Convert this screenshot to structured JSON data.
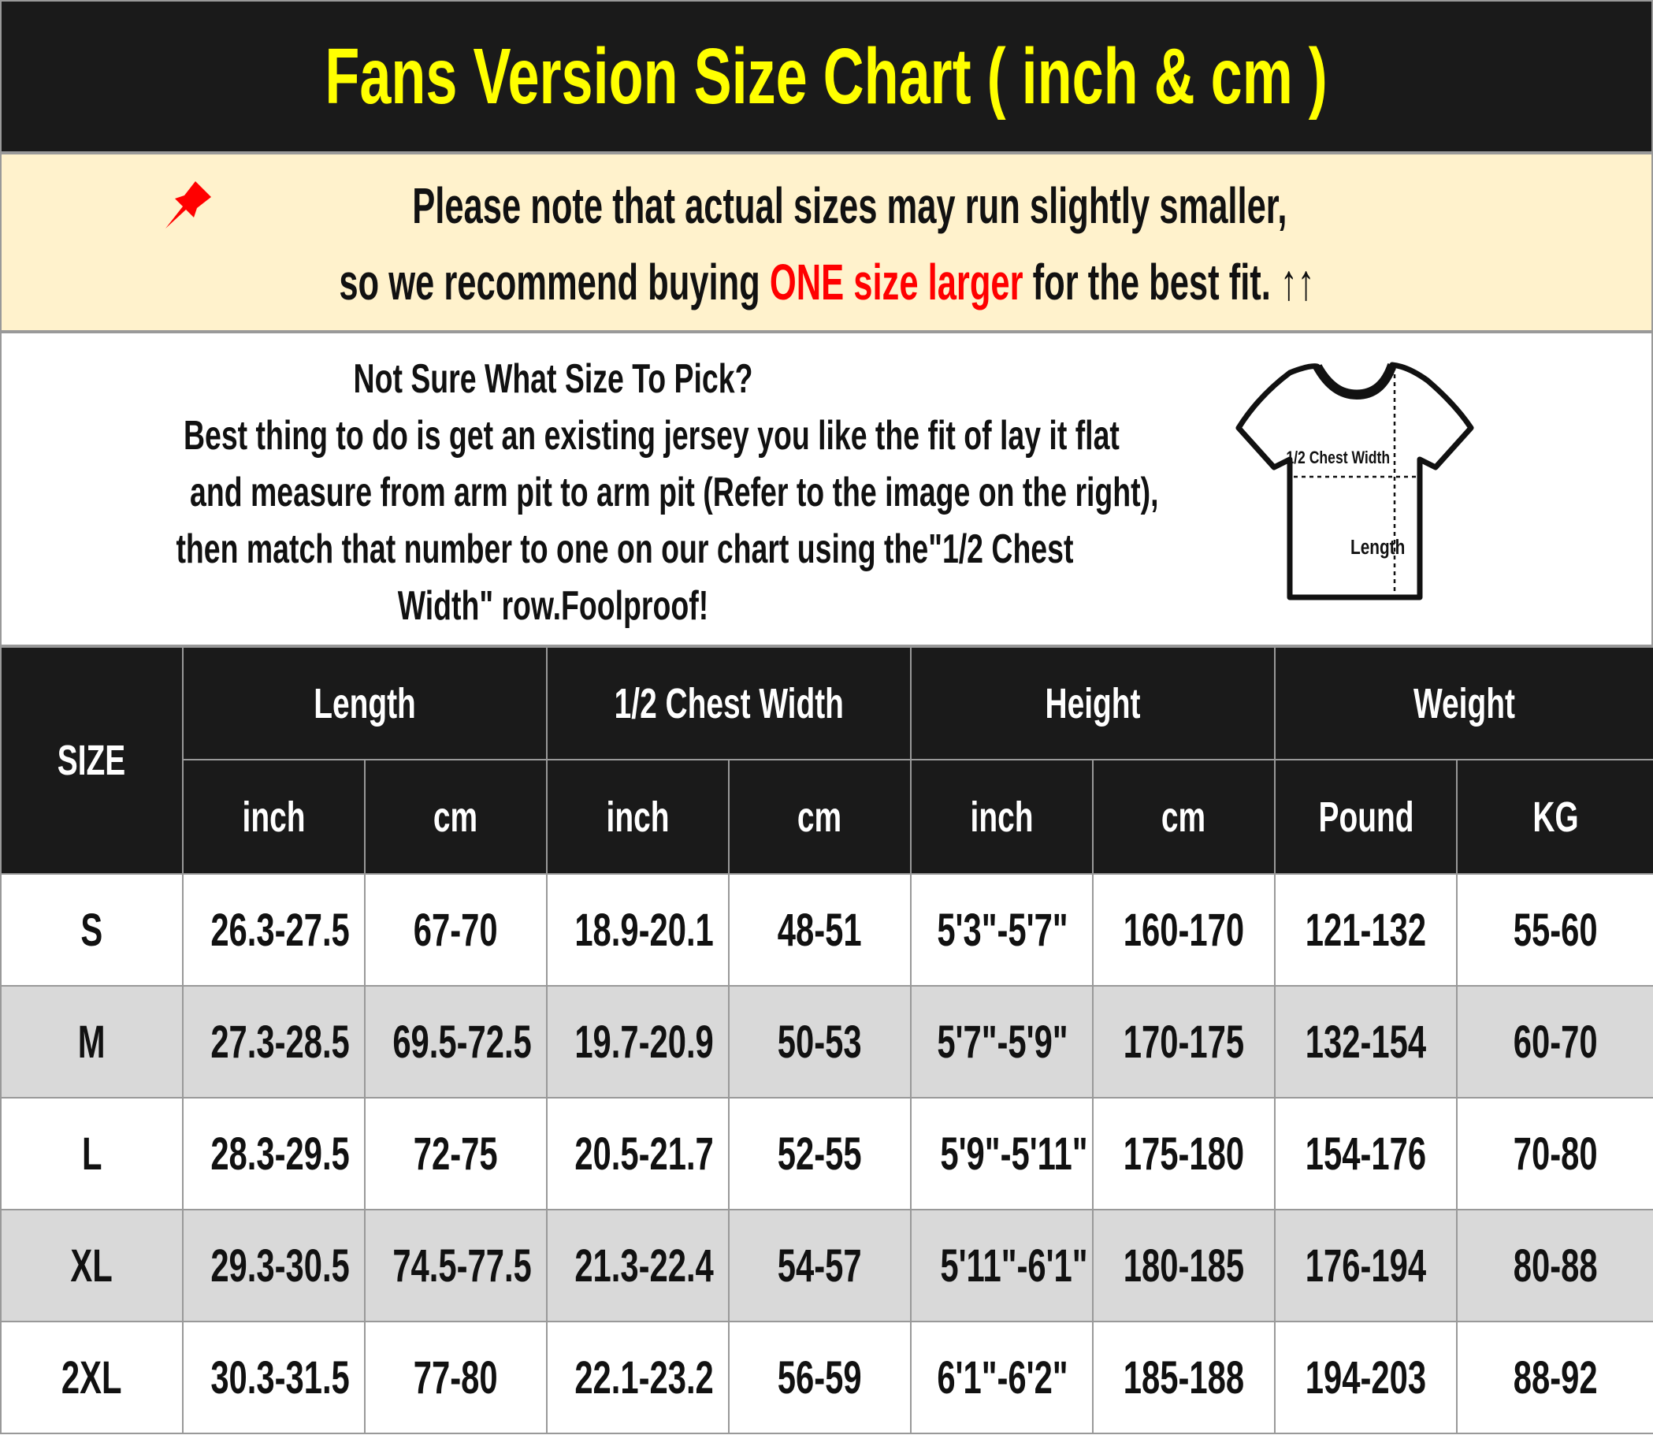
{
  "title": "Fans Version Size Chart ( inch & cm )",
  "note": {
    "icon": "pushpin-icon",
    "line1": "Please note that actual sizes may run slightly smaller,",
    "line2_pre": "so we recommend buying ",
    "line2_highlight": "ONE size larger",
    "line2_post": " for the best fit.",
    "arrows": "↑↑",
    "highlight_color": "#ff0000"
  },
  "info": {
    "heading": "Not Sure What Size To Pick?",
    "lines": [
      "Best thing to do is get an existing jersey you like the fit of lay it flat",
      "and measure from arm pit to arm pit (Refer to the image on the right),",
      "then match that number to one on our chart using the\"1/2 Chest",
      "Width\" row.Foolproof!"
    ],
    "diagram": {
      "chest_label": "1/2 Chest Width",
      "length_label": "Length"
    }
  },
  "table": {
    "size_header": "SIZE",
    "groups": [
      "Length",
      "1/2 Chest Width",
      "Height",
      "Weight"
    ],
    "units": [
      "inch",
      "cm",
      "inch",
      "cm",
      "inch",
      "cm",
      "Pound",
      "KG"
    ],
    "rows": [
      [
        "S",
        "26.3-27.5",
        "67-70",
        "18.9-20.1",
        "48-51",
        "5'3\"-5'7\"",
        "160-170",
        "121-132",
        "55-60"
      ],
      [
        "M",
        "27.3-28.5",
        "69.5-72.5",
        "19.7-20.9",
        "50-53",
        "5'7\"-5'9\"",
        "170-175",
        "132-154",
        "60-70"
      ],
      [
        "L",
        "28.3-29.5",
        "72-75",
        "20.5-21.7",
        "52-55",
        "5'9\"-5'11\"",
        "175-180",
        "154-176",
        "70-80"
      ],
      [
        "XL",
        "29.3-30.5",
        "74.5-77.5",
        "21.3-22.4",
        "54-57",
        "5'11\"-6'1\"",
        "180-185",
        "176-194",
        "80-88"
      ],
      [
        "2XL",
        "30.3-31.5",
        "77-80",
        "22.1-23.2",
        "56-59",
        "6'1\"-6'2\"",
        "185-188",
        "194-203",
        "88-92"
      ]
    ]
  },
  "colors": {
    "header_bg": "#1a1a1a",
    "title": "#ffff00",
    "note_bg": "#fff2cc",
    "alt_row": "#d9d9d9"
  }
}
